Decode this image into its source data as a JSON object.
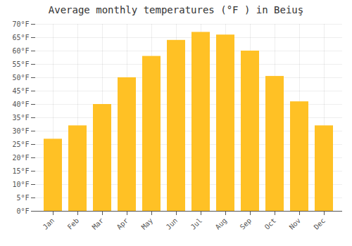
{
  "chart_data": {
    "type": "bar",
    "title": "Average monthly temperatures (°F ) in Beiuş",
    "categories": [
      "Jan",
      "Feb",
      "Mar",
      "Apr",
      "May",
      "Jun",
      "Jul",
      "Aug",
      "Sep",
      "Oct",
      "Nov",
      "Dec"
    ],
    "values": [
      27,
      32,
      40,
      50,
      58,
      64,
      67,
      66,
      60,
      50.5,
      41,
      32
    ],
    "color": "#FFC125",
    "ylim": [
      0,
      70
    ],
    "yticks": [
      {
        "value": 0,
        "label": "0°F"
      },
      {
        "value": 5,
        "label": "5°F"
      },
      {
        "value": 10,
        "label": "10°F"
      },
      {
        "value": 15,
        "label": "15°F"
      },
      {
        "value": 20,
        "label": "20°F"
      },
      {
        "value": 25,
        "label": "25°F"
      },
      {
        "value": 30,
        "label": "30°F"
      },
      {
        "value": 35,
        "label": "35°F"
      },
      {
        "value": 40,
        "label": "40°F"
      },
      {
        "value": 45,
        "label": "45°F"
      },
      {
        "value": 50,
        "label": "50°F"
      },
      {
        "value": 55,
        "label": "55°F"
      },
      {
        "value": 60,
        "label": "60°F"
      },
      {
        "value": 65,
        "label": "65°F"
      },
      {
        "value": 70,
        "label": "70°F"
      }
    ],
    "grid": true
  }
}
